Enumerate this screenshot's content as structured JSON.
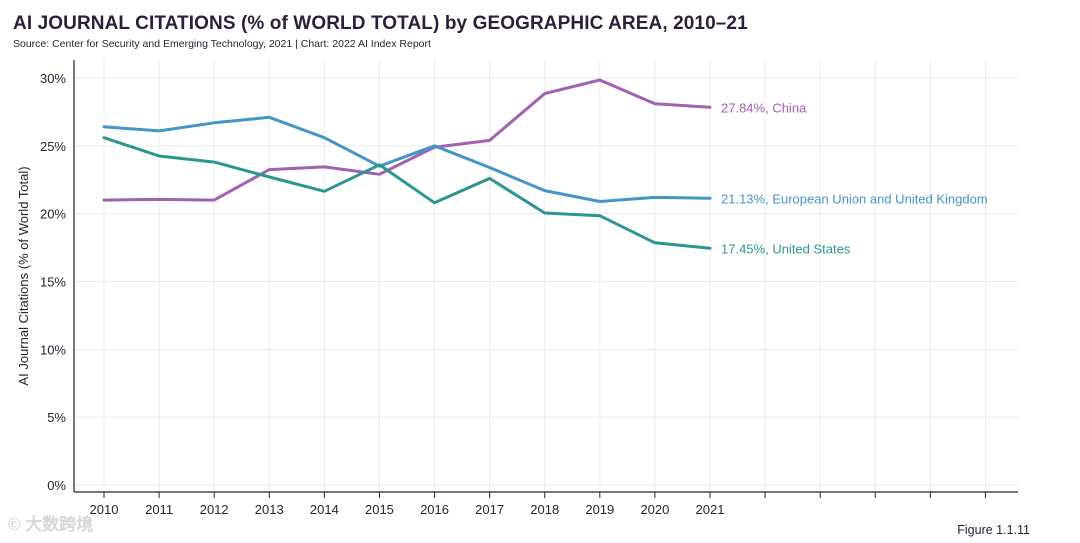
{
  "chart_data": {
    "type": "line",
    "title": "AI JOURNAL CITATIONS (% of WORLD TOTAL) by GEOGRAPHIC AREA, 2010–21",
    "subtitle": "Source: Center for Security and Emerging Technology, 2021 | Chart: 2022 AI Index Report",
    "xlabel": "",
    "ylabel": "AI Journal Citations (% of World Total)",
    "x": [
      2010,
      2011,
      2012,
      2013,
      2014,
      2015,
      2016,
      2017,
      2018,
      2019,
      2020,
      2021
    ],
    "x_tick_labels": [
      "2010",
      "2011",
      "2012",
      "2013",
      "2014",
      "2015",
      "2016",
      "2017",
      "2018",
      "2019",
      "2020",
      "2021"
    ],
    "ylim": [
      0,
      30
    ],
    "y_ticks": [
      0,
      5,
      10,
      15,
      20,
      25,
      30
    ],
    "y_tick_labels": [
      "0%",
      "5%",
      "10%",
      "15%",
      "20%",
      "25%",
      "30%"
    ],
    "grid": true,
    "series": [
      {
        "key": "china",
        "color": "#a160b0",
        "values": [
          21.0,
          21.05,
          21.0,
          23.25,
          23.45,
          22.9,
          24.9,
          25.4,
          28.85,
          29.85,
          28.1,
          27.84
        ],
        "end_label": "27.84%, China"
      },
      {
        "key": "eu_uk",
        "color": "#4596c8",
        "values": [
          26.4,
          26.1,
          26.7,
          27.1,
          25.6,
          23.5,
          25.0,
          23.4,
          21.7,
          20.9,
          21.2,
          21.13
        ],
        "end_label": "21.13%, European Union and United Kingdom"
      },
      {
        "key": "us",
        "color": "#2b9690",
        "values": [
          25.6,
          24.25,
          23.8,
          22.7,
          21.65,
          23.6,
          20.8,
          22.6,
          20.05,
          19.85,
          17.85,
          17.45
        ],
        "end_label": "17.45%, United States"
      }
    ]
  },
  "footer": {
    "figure": "Figure 1.1.11",
    "watermark": "大数跨境"
  }
}
